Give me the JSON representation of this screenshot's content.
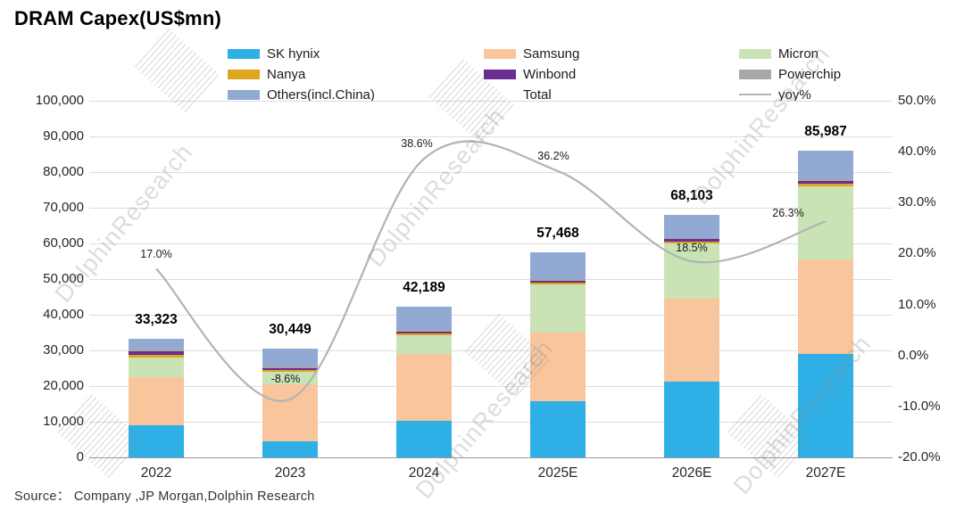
{
  "title": "DRAM Capex(US$mn)",
  "source": "Source：  Company ,JP Morgan,Dolphin  Research",
  "watermark": "DolphinResearch",
  "chart_data": {
    "type": "bar",
    "subtype": "stacked-columns-with-yoy-line",
    "title": "DRAM Capex(US$mn)",
    "categories": [
      "2022",
      "2023",
      "2024",
      "2025E",
      "2026E",
      "2027E"
    ],
    "series": [
      {
        "name": "SK hynix",
        "color": "#2eb0e6",
        "values": [
          9000,
          4500,
          10300,
          15700,
          21300,
          29000
        ]
      },
      {
        "name": "Samsung",
        "color": "#f8c59d",
        "values": [
          13500,
          16000,
          18700,
          19300,
          23200,
          26500
        ]
      },
      {
        "name": "Micron",
        "color": "#c9e3b5",
        "values": [
          5500,
          3500,
          5200,
          13500,
          15500,
          20500
        ]
      },
      {
        "name": "Nanya",
        "color": "#dfa51f",
        "values": [
          800,
          600,
          500,
          600,
          600,
          700
        ]
      },
      {
        "name": "Winbond",
        "color": "#6a2d91",
        "values": [
          900,
          500,
          600,
          500,
          600,
          800
        ]
      },
      {
        "name": "Powerchip",
        "color": "#a8a8a8",
        "values": [
          700,
          500,
          400,
          400,
          400,
          500
        ]
      },
      {
        "name": "Others(incl.China)",
        "color": "#92a9d4",
        "values": [
          2923,
          4849,
          6489,
          7468,
          6503,
          7987
        ]
      }
    ],
    "totals": {
      "name": "Total",
      "values": [
        33323,
        30449,
        42189,
        57468,
        68103,
        85987
      ],
      "labels": [
        "33,323",
        "30,449",
        "42,189",
        "57,468",
        "68,103",
        "85,987"
      ]
    },
    "line": {
      "name": "yoy%",
      "color": "#b3b3b3",
      "values": [
        17.0,
        -8.6,
        38.6,
        36.2,
        18.5,
        26.3
      ],
      "labels": [
        "17.0%",
        "-8.6%",
        "38.6%",
        "36.2%",
        "18.5%",
        "26.3%"
      ]
    },
    "left_axis": {
      "min": 0,
      "max": 100000,
      "tick_step": 10000,
      "ticks": [
        "100,000",
        "90,000",
        "80,000",
        "70,000",
        "60,000",
        "50,000",
        "40,000",
        "30,000",
        "20,000",
        "10,000",
        "0"
      ]
    },
    "right_axis": {
      "min": -20,
      "max": 50,
      "tick_step": 10,
      "ticks": [
        "50.0%",
        "40.0%",
        "30.0%",
        "20.0%",
        "10.0%",
        "0.0%",
        "-10.0%",
        "-20.0%"
      ]
    },
    "legend": {
      "position": "top",
      "rows": [
        [
          "SK hynix",
          "Samsung",
          "Micron"
        ],
        [
          "Nanya",
          "Winbond",
          "Powerchip"
        ],
        [
          "Others(incl.China)",
          "Total",
          "yoy%"
        ]
      ]
    },
    "grid": true
  }
}
